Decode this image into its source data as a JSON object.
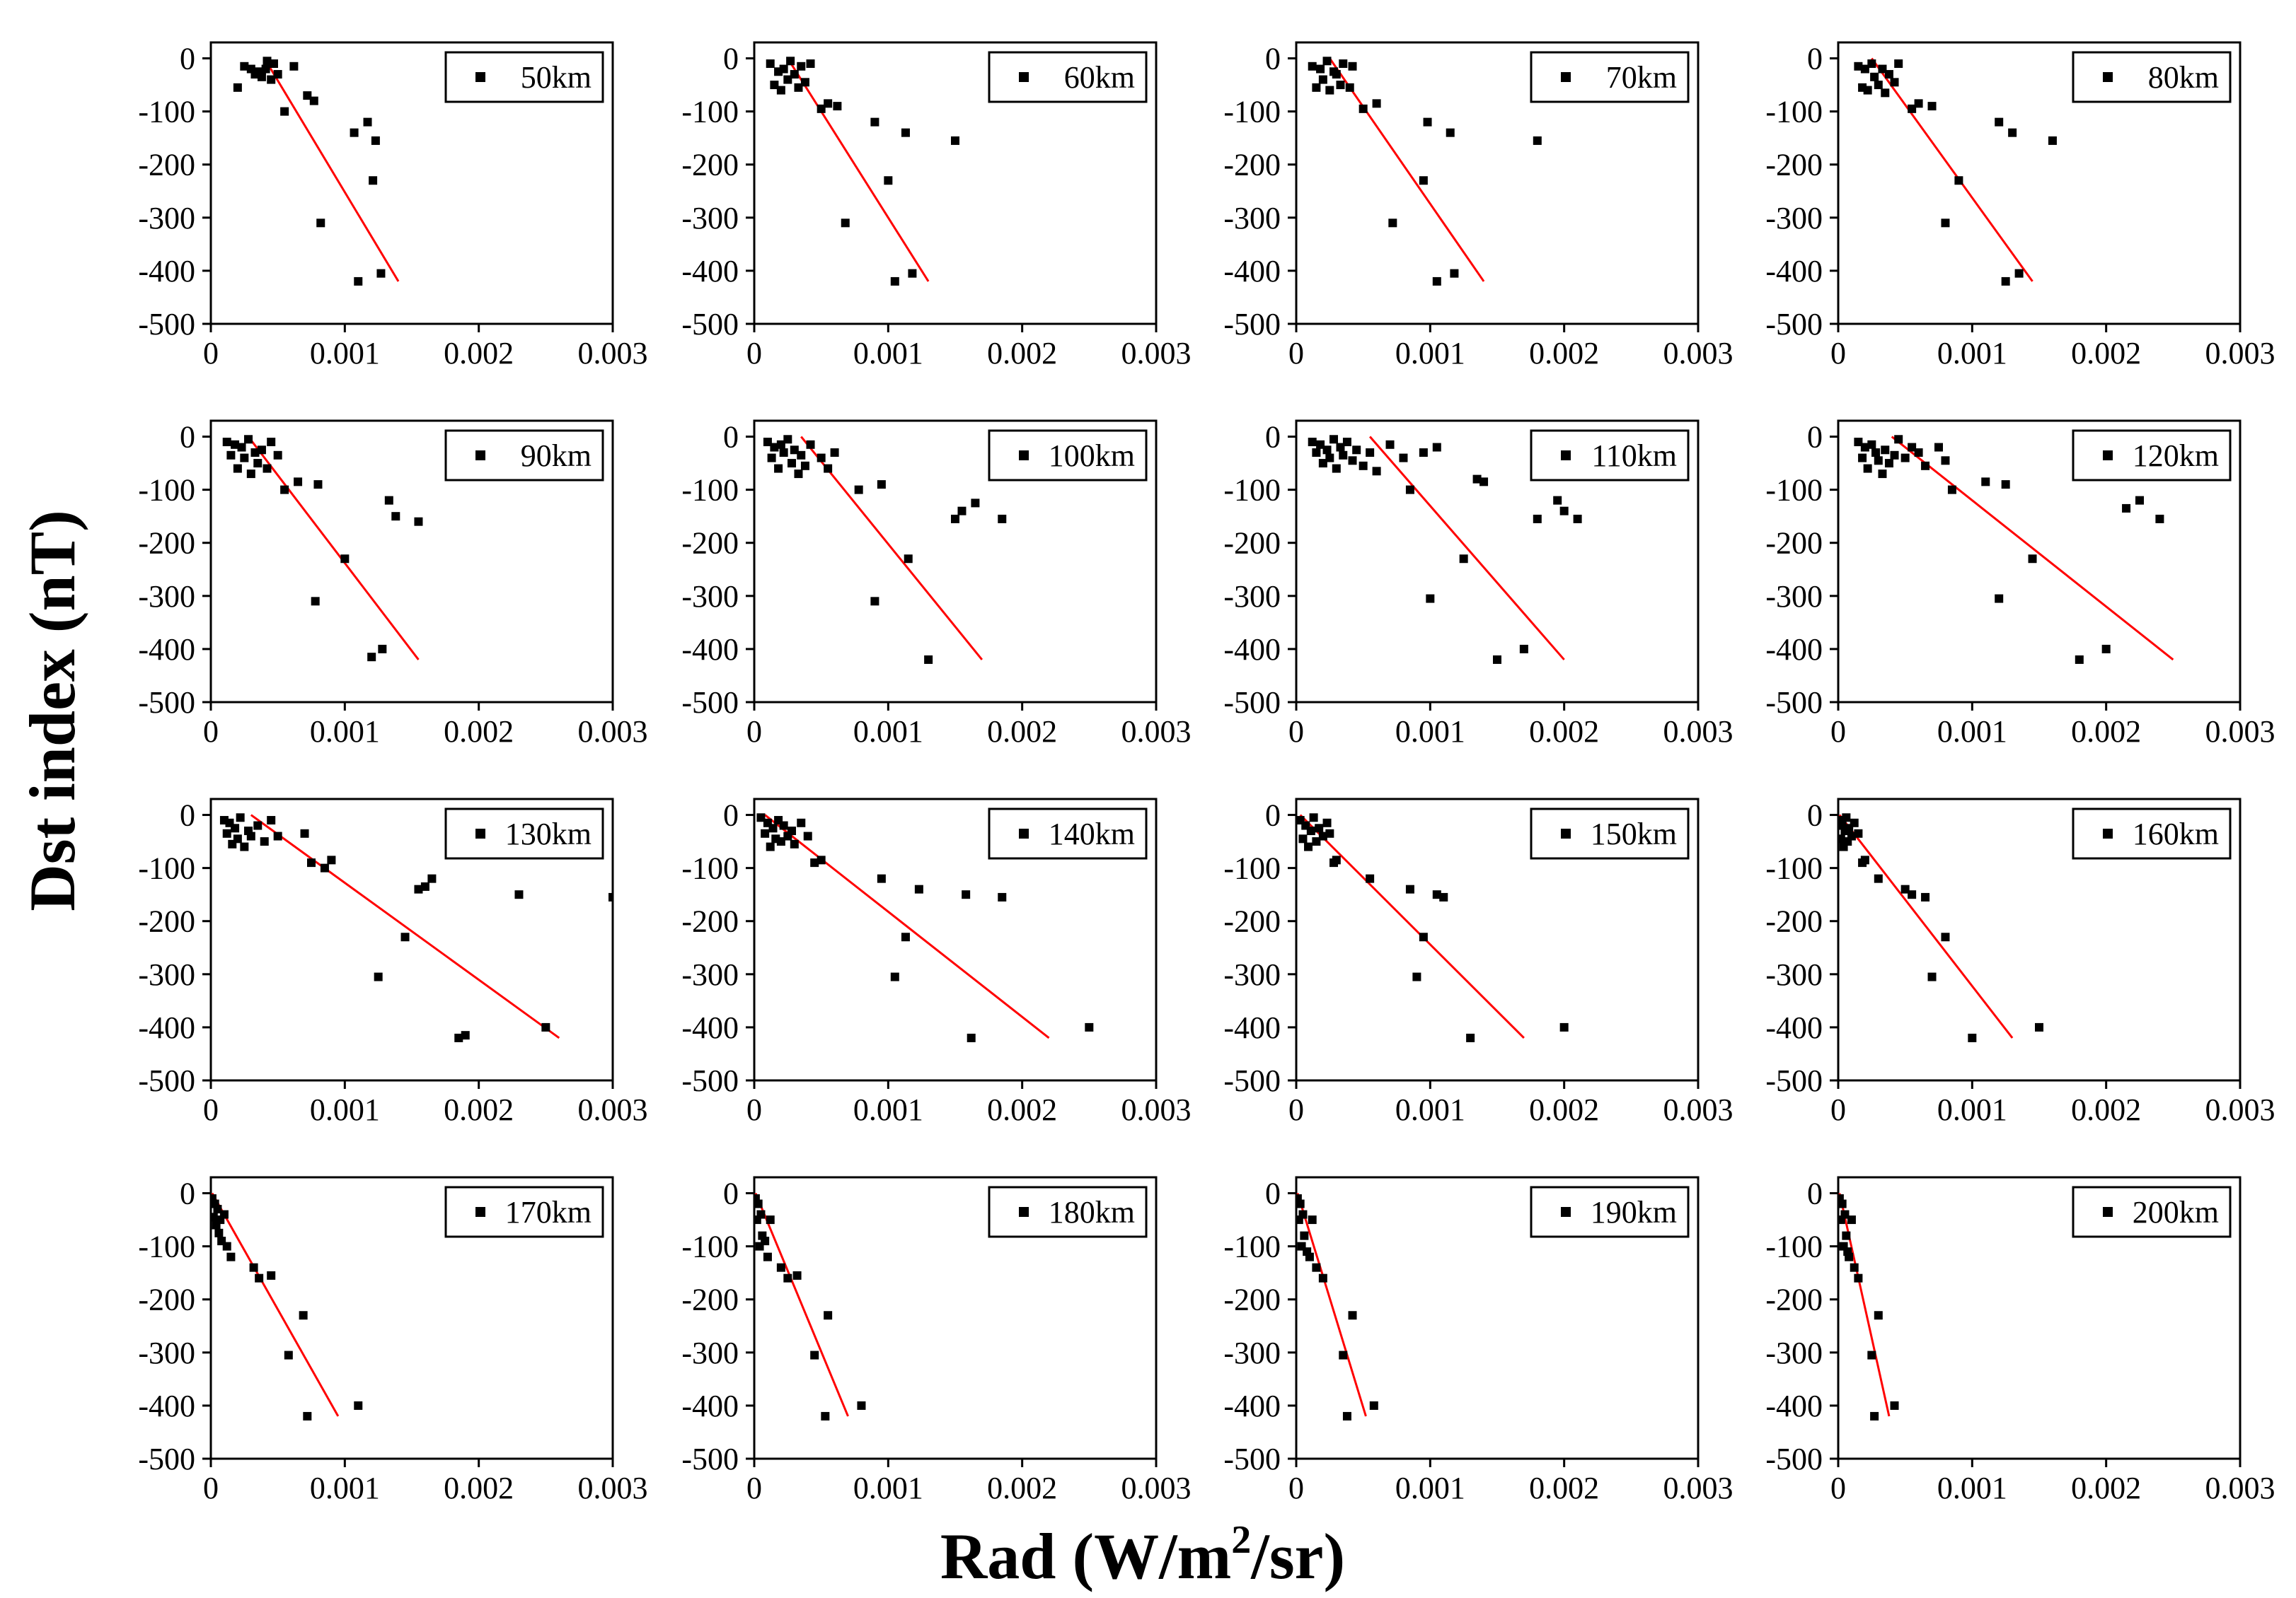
{
  "figure": {
    "ylabel": "Dst index (nT)",
    "xlabel_prefix": "Rad (W/m",
    "xlabel_sup": "2",
    "xlabel_suffix": "/sr)",
    "xticks": [
      0,
      0.001,
      0.002,
      0.003
    ],
    "xtick_labels": [
      "0",
      "0.001",
      "0.002",
      "0.003"
    ],
    "yticks": [
      0,
      -100,
      -200,
      -300,
      -400,
      -500
    ],
    "ytick_labels": [
      "0",
      "-100",
      "-200",
      "-300",
      "-400",
      "-500"
    ],
    "xlim": [
      0,
      0.003
    ],
    "ylim": [
      -500,
      30
    ],
    "point_color": "#000000",
    "fit_color": "#ff0000",
    "legend_placement": "top-right"
  },
  "chart_data": [
    {
      "type": "scatter",
      "title": "50km",
      "legend": "50km",
      "x": [
        0.0002,
        0.00025,
        0.0003,
        0.00033,
        0.00036,
        0.00038,
        0.00041,
        0.00042,
        0.00045,
        0.00047,
        0.0005,
        0.00055,
        0.00062,
        0.00072,
        0.00077,
        0.00082,
        0.00107,
        0.0011,
        0.00117,
        0.00121,
        0.00123,
        0.00127
      ],
      "y": [
        -55,
        -15,
        -20,
        -30,
        -25,
        -35,
        -20,
        -5,
        -40,
        -10,
        -30,
        -100,
        -15,
        -70,
        -80,
        -310,
        -140,
        -420,
        -120,
        -230,
        -155,
        -405
      ],
      "fit": [
        [
          0.0004,
          0
        ],
        [
          0.0014,
          -420
        ]
      ]
    },
    {
      "type": "scatter",
      "title": "60km",
      "legend": "60km",
      "x": [
        0.00012,
        0.00015,
        0.00018,
        0.0002,
        0.00022,
        0.00025,
        0.00027,
        0.0003,
        0.00033,
        0.00035,
        0.00038,
        0.00042,
        0.0005,
        0.00055,
        0.00062,
        0.00068,
        0.0009,
        0.001,
        0.00105,
        0.00113,
        0.00118,
        0.0015
      ],
      "y": [
        -10,
        -50,
        -25,
        -60,
        -20,
        -40,
        -5,
        -30,
        -55,
        -15,
        -45,
        -10,
        -95,
        -85,
        -90,
        -310,
        -120,
        -230,
        -420,
        -140,
        -405,
        -155
      ],
      "fit": [
        [
          0.00025,
          0
        ],
        [
          0.0013,
          -420
        ]
      ]
    },
    {
      "type": "scatter",
      "title": "70km",
      "legend": "70km",
      "x": [
        0.00012,
        0.00015,
        0.00018,
        0.0002,
        0.00023,
        0.00025,
        0.00028,
        0.0003,
        0.00033,
        0.00035,
        0.0004,
        0.00042,
        0.0005,
        0.0006,
        0.00072,
        0.00095,
        0.00098,
        0.00105,
        0.00115,
        0.00118,
        0.0018
      ],
      "y": [
        -15,
        -55,
        -20,
        -40,
        -5,
        -60,
        -25,
        -30,
        -50,
        -10,
        -55,
        -15,
        -95,
        -85,
        -310,
        -230,
        -120,
        -420,
        -140,
        -405,
        -155
      ],
      "fit": [
        [
          0.00025,
          0
        ],
        [
          0.0014,
          -420
        ]
      ]
    },
    {
      "type": "scatter",
      "title": "80km",
      "legend": "80km",
      "x": [
        0.00015,
        0.00018,
        0.0002,
        0.00022,
        0.00025,
        0.00027,
        0.0003,
        0.00033,
        0.00035,
        0.00038,
        0.00042,
        0.00045,
        0.00055,
        0.0006,
        0.0007,
        0.0008,
        0.0009,
        0.0012,
        0.00125,
        0.0013,
        0.00135,
        0.0016
      ],
      "y": [
        -15,
        -55,
        -20,
        -60,
        -10,
        -35,
        -50,
        -20,
        -65,
        -30,
        -45,
        -10,
        -95,
        -85,
        -90,
        -310,
        -230,
        -120,
        -420,
        -140,
        -405,
        -155
      ],
      "fit": [
        [
          0.00025,
          0
        ],
        [
          0.00145,
          -420
        ]
      ]
    },
    {
      "type": "scatter",
      "title": "90km",
      "legend": "90km",
      "x": [
        0.00012,
        0.00015,
        0.00018,
        0.0002,
        0.00023,
        0.00025,
        0.00028,
        0.0003,
        0.00033,
        0.00035,
        0.00038,
        0.00042,
        0.00045,
        0.0005,
        0.00055,
        0.00065,
        0.00078,
        0.0008,
        0.001,
        0.0012,
        0.00128,
        0.00133,
        0.00138,
        0.00155
      ],
      "y": [
        -10,
        -35,
        -15,
        -60,
        -20,
        -40,
        -5,
        -70,
        -30,
        -50,
        -25,
        -60,
        -10,
        -35,
        -100,
        -85,
        -310,
        -90,
        -230,
        -415,
        -400,
        -120,
        -150,
        -160
      ],
      "fit": [
        [
          0.00028,
          0
        ],
        [
          0.00155,
          -420
        ]
      ]
    },
    {
      "type": "scatter",
      "title": "100km",
      "legend": "100km",
      "x": [
        0.0001,
        0.00013,
        0.00015,
        0.00018,
        0.0002,
        0.00022,
        0.00025,
        0.00028,
        0.0003,
        0.00033,
        0.00035,
        0.00038,
        0.00042,
        0.0005,
        0.00055,
        0.0006,
        0.00078,
        0.0009,
        0.00095,
        0.00115,
        0.0013,
        0.0015,
        0.00155,
        0.00165,
        0.00185
      ],
      "y": [
        -10,
        -40,
        -20,
        -60,
        -15,
        -30,
        -5,
        -50,
        -25,
        -70,
        -35,
        -55,
        -15,
        -40,
        -60,
        -30,
        -100,
        -310,
        -90,
        -230,
        -420,
        -155,
        -140,
        -125,
        -155
      ],
      "fit": [
        [
          0.00035,
          0
        ],
        [
          0.0017,
          -420
        ]
      ]
    },
    {
      "type": "scatter",
      "title": "110km",
      "legend": "110km",
      "x": [
        0.00012,
        0.00015,
        0.00018,
        0.0002,
        0.00023,
        0.00025,
        0.00028,
        0.0003,
        0.00033,
        0.00035,
        0.00038,
        0.00042,
        0.00045,
        0.0005,
        0.00055,
        0.0006,
        0.0007,
        0.0008,
        0.00085,
        0.00095,
        0.001,
        0.00105,
        0.00125,
        0.00135,
        0.0014,
        0.0015,
        0.0017,
        0.0018,
        0.00195,
        0.002,
        0.0021
      ],
      "y": [
        -10,
        -30,
        -15,
        -50,
        -25,
        -40,
        -5,
        -60,
        -20,
        -35,
        -10,
        -45,
        -25,
        -55,
        -30,
        -65,
        -15,
        -40,
        -100,
        -30,
        -305,
        -20,
        -230,
        -80,
        -85,
        -420,
        -400,
        -155,
        -120,
        -140,
        -155
      ],
      "fit": [
        [
          0.00055,
          0
        ],
        [
          0.002,
          -420
        ]
      ]
    },
    {
      "type": "scatter",
      "title": "120km",
      "legend": "120km",
      "x": [
        0.00015,
        0.00018,
        0.0002,
        0.00022,
        0.00025,
        0.00028,
        0.0003,
        0.00033,
        0.00035,
        0.00038,
        0.00042,
        0.00045,
        0.0005,
        0.00055,
        0.0006,
        0.00065,
        0.00075,
        0.0008,
        0.00085,
        0.0011,
        0.0012,
        0.00125,
        0.00145,
        0.0018,
        0.002,
        0.00215,
        0.00225,
        0.0024
      ],
      "y": [
        -10,
        -40,
        -20,
        -60,
        -15,
        -30,
        -45,
        -70,
        -25,
        -50,
        -35,
        -5,
        -40,
        -20,
        -30,
        -55,
        -20,
        -45,
        -100,
        -85,
        -305,
        -90,
        -230,
        -420,
        -400,
        -135,
        -120,
        -155
      ],
      "fit": [
        [
          0.0004,
          0
        ],
        [
          0.0025,
          -420
        ]
      ]
    },
    {
      "type": "scatter",
      "title": "130km",
      "legend": "130km",
      "x": [
        0.0001,
        0.00012,
        0.00014,
        0.00016,
        0.00018,
        0.0002,
        0.00022,
        0.00025,
        0.00028,
        0.0003,
        0.00035,
        0.0004,
        0.00045,
        0.0005,
        0.0007,
        0.00075,
        0.00085,
        0.0009,
        0.00125,
        0.00145,
        0.00155,
        0.0016,
        0.00165,
        0.00185,
        0.0019,
        0.0023,
        0.0025,
        0.003
      ],
      "y": [
        -10,
        -35,
        -15,
        -55,
        -25,
        -45,
        -5,
        -60,
        -30,
        -40,
        -20,
        -50,
        -10,
        -40,
        -35,
        -90,
        -100,
        -85,
        -305,
        -230,
        -140,
        -135,
        -120,
        -420,
        -415,
        -150,
        -400,
        -155
      ],
      "fit": [
        [
          0.0003,
          0
        ],
        [
          0.0026,
          -420
        ]
      ]
    },
    {
      "type": "scatter",
      "title": "140km",
      "legend": "140km",
      "x": [
        5e-05,
        8e-05,
        0.0001,
        0.00012,
        0.00014,
        0.00016,
        0.00018,
        0.0002,
        0.00022,
        0.00025,
        0.00028,
        0.0003,
        0.00035,
        0.0004,
        0.00045,
        0.0005,
        0.00095,
        0.00105,
        0.00113,
        0.00123,
        0.00158,
        0.00162,
        0.00185,
        0.0025
      ],
      "y": [
        -5,
        -35,
        -15,
        -60,
        -25,
        -45,
        -10,
        -50,
        -20,
        -40,
        -30,
        -55,
        -15,
        -40,
        -90,
        -85,
        -120,
        -305,
        -230,
        -140,
        -150,
        -420,
        -155,
        -400
      ],
      "fit": [
        [
          8e-05,
          0
        ],
        [
          0.0022,
          -420
        ]
      ]
    },
    {
      "type": "scatter",
      "title": "150km",
      "legend": "150km",
      "x": [
        3e-05,
        5e-05,
        7e-05,
        9e-05,
        0.00011,
        0.00013,
        0.00015,
        0.00017,
        0.0002,
        0.00023,
        0.00025,
        0.00028,
        0.0003,
        0.00055,
        0.00085,
        0.0009,
        0.00095,
        0.00105,
        0.0011,
        0.0013,
        0.002
      ],
      "y": [
        -10,
        -45,
        -20,
        -60,
        -30,
        -5,
        -50,
        -25,
        -40,
        -15,
        -35,
        -90,
        -85,
        -120,
        -140,
        -305,
        -230,
        -150,
        -155,
        -420,
        -400
      ],
      "fit": [
        [
          3e-05,
          0
        ],
        [
          0.0017,
          -420
        ]
      ]
    },
    {
      "type": "scatter",
      "title": "160km",
      "legend": "160km",
      "x": [
        1e-05,
        2e-05,
        3e-05,
        4e-05,
        5e-05,
        6e-05,
        7e-05,
        8e-05,
        0.0001,
        0.00012,
        0.00015,
        0.00018,
        0.0002,
        0.0003,
        0.0005,
        0.00055,
        0.00065,
        0.0007,
        0.0008,
        0.001,
        0.0015
      ],
      "y": [
        -10,
        -45,
        -20,
        -60,
        -30,
        -5,
        -50,
        -25,
        -40,
        -15,
        -35,
        -90,
        -85,
        -120,
        -140,
        -150,
        -155,
        -305,
        -230,
        -420,
        -400
      ],
      "fit": [
        [
          1e-05,
          0
        ],
        [
          0.0013,
          -420
        ]
      ]
    },
    {
      "type": "scatter",
      "title": "170km",
      "legend": "170km",
      "x": [
        1e-05,
        2e-05,
        3e-05,
        4e-05,
        5e-05,
        6e-05,
        7e-05,
        8e-05,
        0.0001,
        0.00012,
        0.00015,
        0.00032,
        0.00036,
        0.00045,
        0.00058,
        0.00069,
        0.00072,
        0.0011
      ],
      "y": [
        -10,
        -45,
        -20,
        -60,
        -30,
        -75,
        -50,
        -90,
        -40,
        -100,
        -120,
        -140,
        -160,
        -155,
        -305,
        -230,
        -420,
        -400
      ],
      "fit": [
        [
          1e-05,
          0
        ],
        [
          0.00095,
          -420
        ]
      ]
    },
    {
      "type": "scatter",
      "title": "180km",
      "legend": "180km",
      "x": [
        1e-05,
        2e-05,
        3e-05,
        4e-05,
        5e-05,
        6e-05,
        8e-05,
        0.0001,
        0.00012,
        0.0002,
        0.00025,
        0.00032,
        0.00045,
        0.00053,
        0.00055,
        0.0008
      ],
      "y": [
        -10,
        -50,
        -20,
        -100,
        -40,
        -80,
        -90,
        -120,
        -50,
        -140,
        -160,
        -155,
        -305,
        -420,
        -230,
        -400
      ],
      "fit": [
        [
          1e-05,
          0
        ],
        [
          0.0007,
          -420
        ]
      ]
    },
    {
      "type": "scatter",
      "title": "190km",
      "legend": "190km",
      "x": [
        1e-05,
        2e-05,
        3e-05,
        4e-05,
        5e-05,
        6e-05,
        8e-05,
        0.0001,
        0.00012,
        0.00015,
        0.0002,
        0.00035,
        0.00038,
        0.00042,
        0.00058
      ],
      "y": [
        -10,
        -50,
        -20,
        -100,
        -40,
        -80,
        -110,
        -120,
        -50,
        -140,
        -160,
        -305,
        -420,
        -230,
        -400
      ],
      "fit": [
        [
          1e-05,
          0
        ],
        [
          0.00052,
          -420
        ]
      ]
    },
    {
      "type": "scatter",
      "title": "200km",
      "legend": "200km",
      "x": [
        1e-05,
        2e-05,
        3e-05,
        4e-05,
        5e-05,
        6e-05,
        7e-05,
        8e-05,
        0.0001,
        0.00012,
        0.00015,
        0.00025,
        0.00027,
        0.0003,
        0.00042
      ],
      "y": [
        -10,
        -50,
        -20,
        -100,
        -40,
        -80,
        -110,
        -120,
        -50,
        -140,
        -160,
        -305,
        -420,
        -230,
        -400
      ],
      "fit": [
        [
          1e-05,
          0
        ],
        [
          0.00038,
          -420
        ]
      ]
    }
  ]
}
